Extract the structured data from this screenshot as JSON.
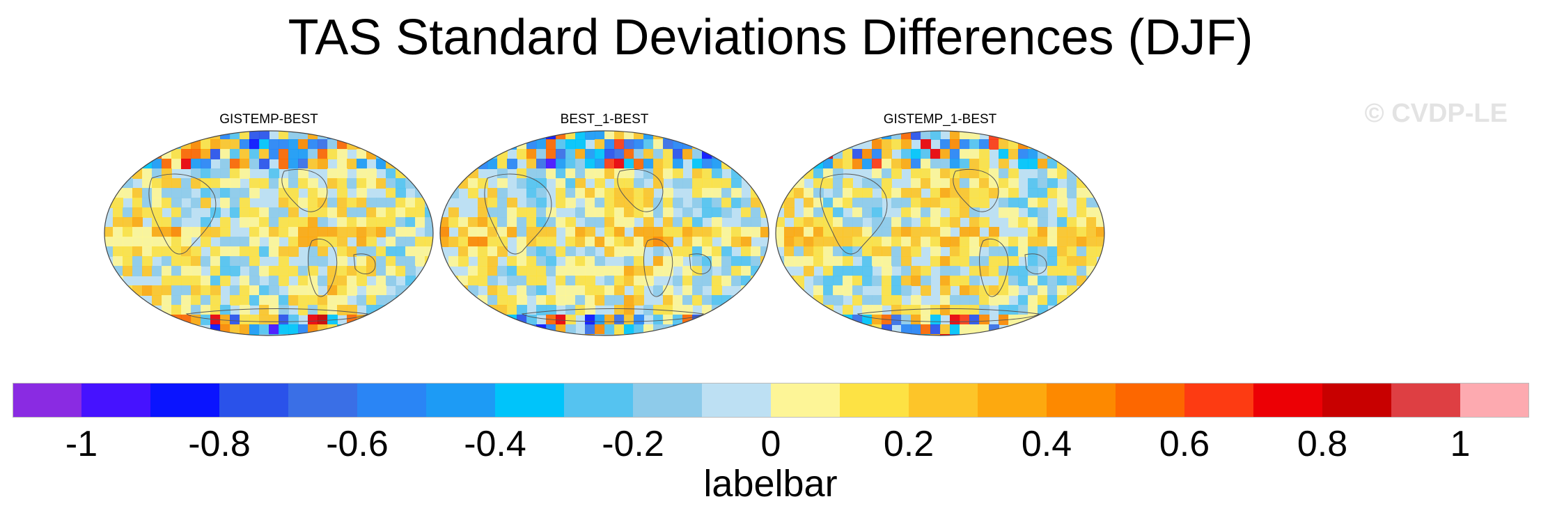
{
  "title": "TAS Standard Deviations Differences (DJF)",
  "watermark": "© CVDP-LE",
  "panels": [
    {
      "title": "GISTEMP-BEST",
      "variant": 0
    },
    {
      "title": "BEST_1-BEST",
      "variant": 1
    },
    {
      "title": "GISTEMP_1-BEST",
      "variant": 2
    }
  ],
  "labelbar": {
    "title": "labelbar",
    "colors": [
      "#8a2be2",
      "#4612ff",
      "#0a14ff",
      "#2a52ea",
      "#3a6fe6",
      "#2a85f5",
      "#1d9bf5",
      "#00c4fa",
      "#55c3f0",
      "#8ecbea",
      "#bde0f3",
      "#fdf597",
      "#fde244",
      "#fdc529",
      "#fda90f",
      "#fd8900",
      "#fd6700",
      "#fd3b12",
      "#ec0005",
      "#c80000",
      "#de3f43",
      "#fdaab0"
    ],
    "tick_labels": [
      "-1",
      "-0.8",
      "-0.6",
      "-0.4",
      "-0.2",
      "0",
      "0.2",
      "0.4",
      "0.6",
      "0.8",
      "1"
    ]
  }
}
